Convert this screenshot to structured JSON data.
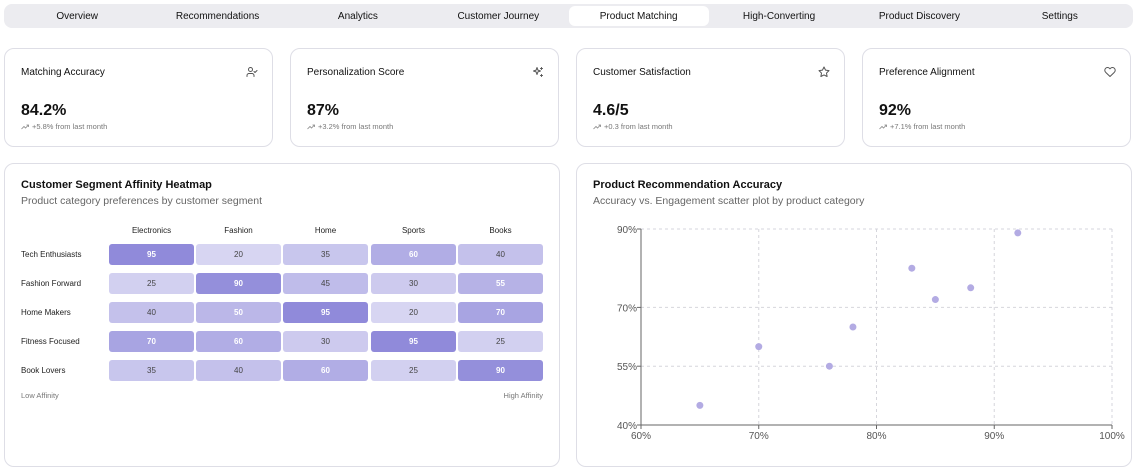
{
  "tabs": [
    {
      "label": "Overview",
      "active": false
    },
    {
      "label": "Recommendations",
      "active": false
    },
    {
      "label": "Analytics",
      "active": false
    },
    {
      "label": "Customer Journey",
      "active": false
    },
    {
      "label": "Product Matching",
      "active": true
    },
    {
      "label": "High-Converting",
      "active": false
    },
    {
      "label": "Product Discovery",
      "active": false
    },
    {
      "label": "Settings",
      "active": false
    }
  ],
  "stats": [
    {
      "title": "Matching Accuracy",
      "value": "84.2%",
      "change": "+5.8% from last month",
      "icon": "user-check-icon"
    },
    {
      "title": "Personalization Score",
      "value": "87%",
      "change": "+3.2% from last month",
      "icon": "sparkles-icon"
    },
    {
      "title": "Customer Satisfaction",
      "value": "4.6/5",
      "change": "+0.3 from last month",
      "icon": "star-icon"
    },
    {
      "title": "Preference Alignment",
      "value": "92%",
      "change": "+7.1% from last month",
      "icon": "heart-icon"
    }
  ],
  "heatmap": {
    "title": "Customer Segment Affinity Heatmap",
    "subtitle": "Product category preferences by customer segment",
    "columns": [
      "Electronics",
      "Fashion",
      "Home",
      "Sports",
      "Books"
    ],
    "rows": [
      {
        "label": "Tech Enthusiasts",
        "values": [
          "95",
          "20",
          "35",
          "60",
          "40"
        ]
      },
      {
        "label": "Fashion Forward",
        "values": [
          "25",
          "90",
          "45",
          "30",
          "55"
        ]
      },
      {
        "label": "Home Makers",
        "values": [
          "40",
          "50",
          "95",
          "20",
          "70"
        ]
      },
      {
        "label": "Fitness Focused",
        "values": [
          "70",
          "60",
          "30",
          "95",
          "25"
        ]
      },
      {
        "label": "Book Lovers",
        "values": [
          "35",
          "40",
          "60",
          "25",
          "90"
        ]
      }
    ],
    "legend_low": "Low Affinity",
    "legend_high": "High Affinity",
    "color_base": "#8b85d8"
  },
  "scatter": {
    "title": "Product Recommendation Accuracy",
    "subtitle": "Accuracy vs. Engagement scatter plot by product category",
    "color": "#b3abe3"
  },
  "chart_data": {
    "type": "scatter",
    "xlim": [
      60,
      100
    ],
    "ylim": [
      40,
      90
    ],
    "x_ticks": [
      60,
      70,
      80,
      90,
      100
    ],
    "x_tick_labels": [
      "60%",
      "70%",
      "80%",
      "90%",
      "100%"
    ],
    "y_ticks": [
      40,
      55,
      70,
      90
    ],
    "y_tick_labels": [
      "40%",
      "55%",
      "70%",
      "90%"
    ],
    "grid": true,
    "points": [
      {
        "x": 65,
        "y": 45
      },
      {
        "x": 70,
        "y": 60
      },
      {
        "x": 76,
        "y": 55
      },
      {
        "x": 78,
        "y": 65
      },
      {
        "x": 83,
        "y": 80
      },
      {
        "x": 85,
        "y": 72
      },
      {
        "x": 88,
        "y": 75
      },
      {
        "x": 92,
        "y": 89
      }
    ]
  }
}
